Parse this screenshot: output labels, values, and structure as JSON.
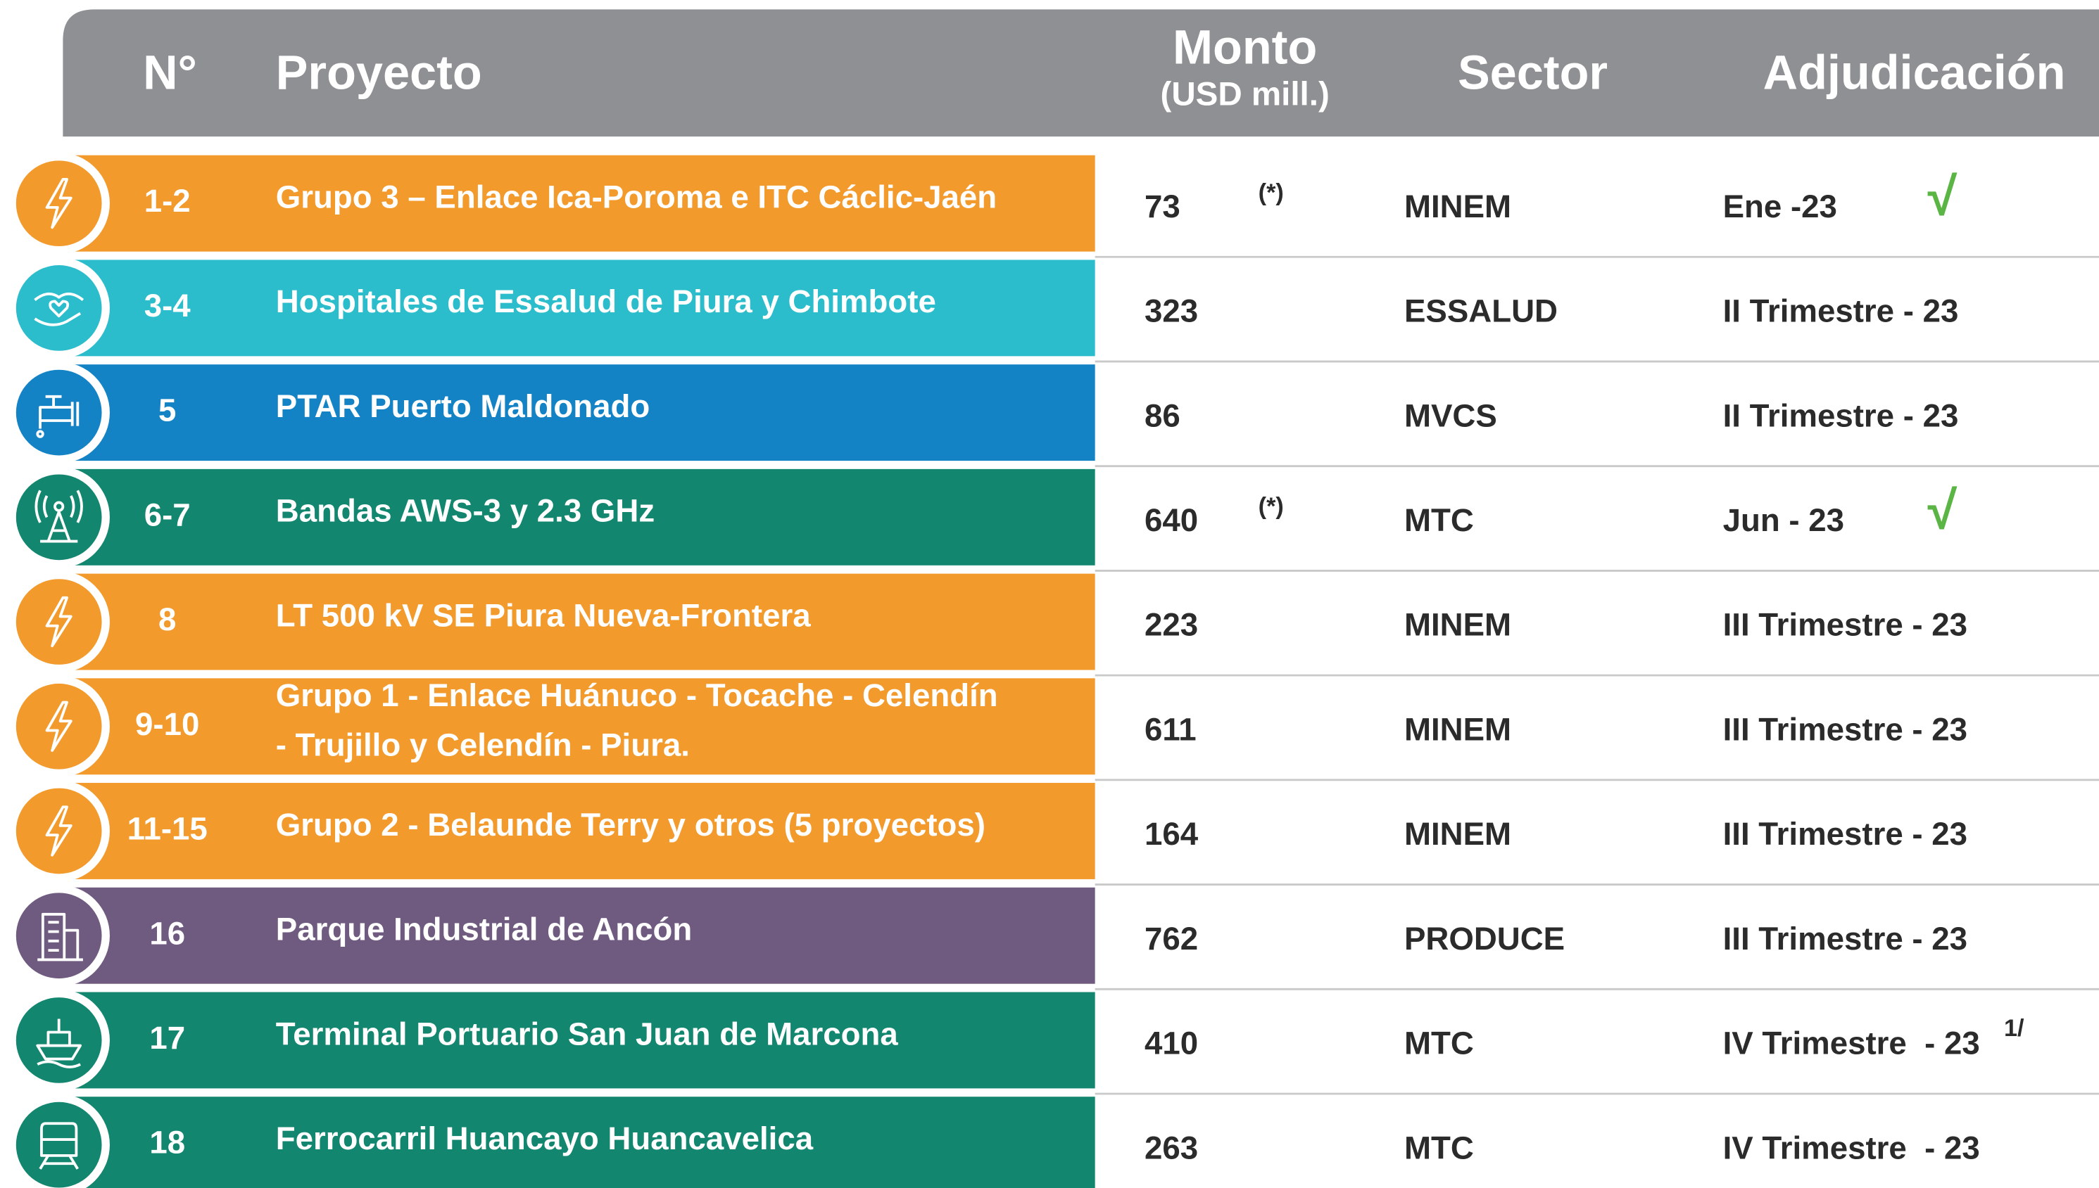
{
  "header": {
    "num": "N°",
    "project": "Proyecto",
    "amount": "Monto",
    "amount_unit": "(USD mill.)",
    "sector": "Sector",
    "award": "Adjudicación"
  },
  "table": {
    "rows": [
      {
        "num": "1-2",
        "project": [
          "Grupo 3 – Enlace Ica-Poroma e ITC Cáclic-Jaén"
        ],
        "amount": "73",
        "note": "(*)",
        "sector": "MINEM",
        "award": "Ene -23",
        "check": "√",
        "color": "#f39a2d"
      },
      {
        "num": "3-4",
        "project": [
          "Hospitales de Essalud de Piura y Chimbote"
        ],
        "amount": "323",
        "sector": "ESSALUD",
        "award": "II Trimestre - 23",
        "color": "#2bbdcb"
      },
      {
        "num": "5",
        "project": [
          "PTAR Puerto Maldonado"
        ],
        "amount": "86",
        "sector": "MVCS",
        "award": "II Trimestre - 23",
        "color": "#1483c6"
      },
      {
        "num": "6-7",
        "project": [
          "Bandas AWS-3 y 2.3 GHz"
        ],
        "amount": "640",
        "note": "(*)",
        "sector": "MTC",
        "award": "Jun - 23",
        "check": "√",
        "color": "#12866e"
      },
      {
        "num": "8",
        "project": [
          "LT 500 kV SE Piura Nueva-Frontera"
        ],
        "amount": "223",
        "sector": "MINEM",
        "award": "III Trimestre - 23",
        "color": "#f39a2d"
      },
      {
        "num": "9-10",
        "project": [
          "Grupo 1 - Enlace Huánuco - Tocache - Celendín",
          "- Trujillo y Celendín - Piura."
        ],
        "amount": "611",
        "sector": "MINEM",
        "award": "III Trimestre - 23",
        "color": "#f39a2d"
      },
      {
        "num": "11-15",
        "project": [
          "Grupo 2 - Belaunde Terry y otros (5 proyectos)"
        ],
        "amount": "164",
        "sector": "MINEM",
        "award": "III Trimestre - 23",
        "color": "#f39a2d"
      },
      {
        "num": "16",
        "project": [
          "Parque Industrial de Ancón"
        ],
        "amount": "762",
        "sector": "PRODUCE",
        "award": "III Trimestre - 23",
        "color": "#6f5a80"
      },
      {
        "num": "17",
        "project": [
          "Terminal Portuario San Juan de Marcona"
        ],
        "amount": "410",
        "sector": "MTC",
        "award": "IV Trimestre  - 23",
        "footnote": "1/",
        "color": "#12866e"
      },
      {
        "num": "18",
        "project": [
          "Ferrocarril Huancayo Huancavelica"
        ],
        "amount": "263",
        "sector": "MTC",
        "award": "IV Trimestre  - 23",
        "color": "#12866e"
      }
    ]
  }
}
